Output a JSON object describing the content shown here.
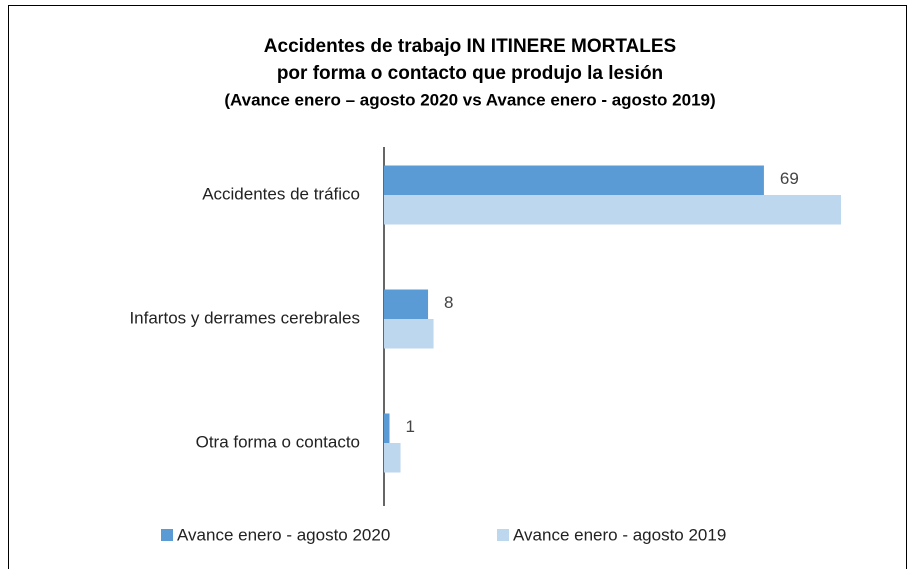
{
  "chart_data": {
    "type": "bar",
    "orientation": "horizontal",
    "title": "Accidentes de trabajo IN ITINERE MORTALES",
    "title_line2": "por forma o contacto que produjo la lesión",
    "subtitle": "(Avance enero – agosto 2020 vs Avance enero  - agosto 2019)",
    "categories": [
      "Accidentes de tráfico",
      "Infartos y derrames cerebrales",
      "Otra forma o contacto"
    ],
    "series": [
      {
        "name": "Avance enero - agosto 2020",
        "color": "#5b9bd5",
        "values": [
          69,
          8,
          1
        ]
      },
      {
        "name": "Avance enero - agosto 2019",
        "color": "#bdd7ee",
        "values": [
          83,
          9,
          3
        ]
      }
    ],
    "legend": "bottom"
  }
}
